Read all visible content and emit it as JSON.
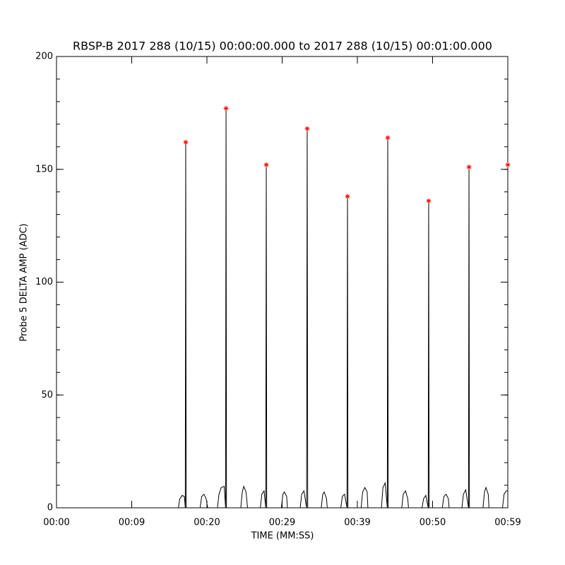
{
  "chart_data": {
    "type": "line",
    "title": "RBSP-B 2017 288 (10/15) 00:00:00.000 to 2017 288 (10/15) 00:01:00.000",
    "x_label": "TIME (MM:SS)",
    "y_label": "Probe 5 DELTA AMP (ADC)",
    "xlim": [
      0,
      60
    ],
    "ylim": [
      0,
      200
    ],
    "xticks": [
      {
        "value": 0,
        "label": "00:00"
      },
      {
        "value": 10,
        "label": "00:09"
      },
      {
        "value": 20,
        "label": "00:20"
      },
      {
        "value": 30,
        "label": "00:29"
      },
      {
        "value": 40,
        "label": "00:39"
      },
      {
        "value": 50,
        "label": "00:50"
      },
      {
        "value": 60,
        "label": "00:59"
      }
    ],
    "yticks": [
      0,
      50,
      100,
      150,
      200
    ],
    "yminor_step": 10,
    "grid": false,
    "series": [
      {
        "mode": "line",
        "color": "#000000",
        "x": [
          0,
          16.2,
          16.4,
          16.7,
          17.0,
          17.12,
          17.18,
          17.24,
          19.1,
          19.3,
          19.6,
          19.9,
          20.1,
          21.4,
          21.6,
          21.9,
          22.3,
          22.48,
          22.54,
          22.6,
          24.5,
          24.7,
          24.9,
          25.2,
          25.4,
          27.1,
          27.3,
          27.6,
          27.82,
          27.89,
          27.95,
          29.9,
          30.1,
          30.3,
          30.6,
          30.7,
          32.4,
          32.6,
          32.9,
          33.25,
          33.33,
          33.4,
          35.2,
          35.4,
          35.6,
          35.9,
          36.0,
          37.8,
          38.0,
          38.3,
          38.62,
          38.69,
          38.75,
          40.5,
          40.7,
          41.0,
          41.3,
          41.4,
          43.2,
          43.4,
          43.7,
          43.98,
          44.04,
          44.1,
          45.9,
          46.1,
          46.4,
          46.7,
          46.8,
          48.6,
          48.8,
          49.1,
          49.42,
          49.48,
          49.54,
          51.3,
          51.5,
          51.8,
          52.1,
          52.2,
          53.9,
          54.1,
          54.4,
          54.78,
          54.84,
          54.9,
          56.7,
          56.9,
          57.1,
          57.4,
          57.5,
          59.3,
          59.5,
          59.8,
          60
        ],
        "values": [
          0,
          0,
          4,
          5.5,
          5,
          0,
          162,
          0,
          0,
          5,
          6,
          4,
          0,
          0,
          6,
          9,
          9.5,
          0,
          177,
          0,
          0,
          7,
          9.5,
          7,
          0,
          0,
          6,
          7.5,
          0,
          152,
          0,
          0,
          6,
          7,
          5,
          0,
          0,
          6,
          7.5,
          0,
          168,
          0,
          0,
          6,
          7,
          4,
          0,
          0,
          5,
          6,
          0,
          138,
          0,
          0,
          7,
          9,
          7,
          0,
          0,
          9,
          11,
          0,
          164,
          0,
          0,
          6,
          7.5,
          4,
          0,
          0,
          4,
          5.5,
          0,
          136,
          0,
          0,
          5,
          6,
          4,
          0,
          0,
          6,
          8,
          0,
          151,
          0,
          0,
          7,
          9,
          6,
          0,
          0,
          6,
          7.5,
          7.5
        ]
      },
      {
        "mode": "markers",
        "marker": "asterisk",
        "color": "#ff0000",
        "x": [
          17.18,
          22.54,
          27.89,
          33.33,
          38.69,
          44.04,
          49.48,
          54.84,
          60
        ],
        "values": [
          162,
          177,
          152,
          168,
          138,
          164,
          136,
          151,
          152
        ]
      }
    ]
  }
}
